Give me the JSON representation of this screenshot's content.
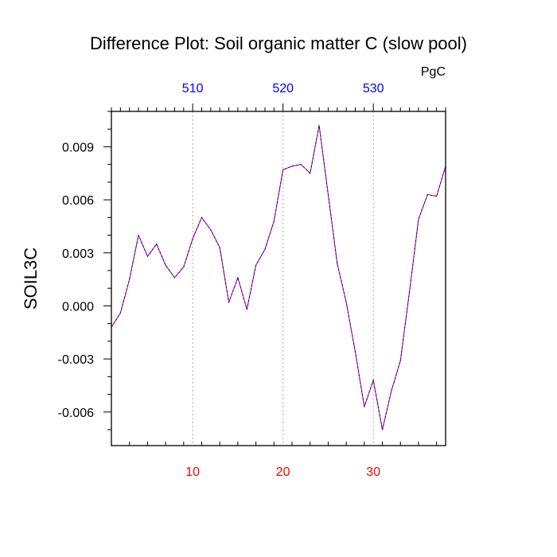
{
  "chart_data": {
    "type": "line",
    "title": "Difference Plot: Soil organic matter C (slow pool)",
    "units": "PgC",
    "ylabel": "SOIL3C",
    "xlabel": "",
    "xlim": [
      1,
      38
    ],
    "ylim": [
      -0.0079,
      0.011
    ],
    "grid": "vertical dashed at bottom x major ticks",
    "x_ticks": [
      10,
      20,
      30
    ],
    "y_ticks": [
      0.009,
      0.006,
      0.003,
      0.0,
      -0.003,
      -0.006
    ],
    "y_tick_labels": [
      "0.009",
      "0.006",
      "0.003",
      "0.000",
      "-0.003",
      "-0.006"
    ],
    "top_ticks": [
      {
        "x": 10,
        "label": "510"
      },
      {
        "x": 20,
        "label": "520"
      },
      {
        "x": 30,
        "label": "530"
      }
    ],
    "colors": {
      "bottom_tick_labels": "#ff0000",
      "top_tick_labels": "#0000ff",
      "series_primary": "#0000ff",
      "series_secondary": "#ff0000",
      "grid": "#aaaaaa",
      "frame": "#000000"
    },
    "series": [
      {
        "values": [
          [
            1,
            -0.0012
          ],
          [
            2,
            -0.0004
          ],
          [
            3,
            0.0015
          ],
          [
            4,
            0.004
          ],
          [
            5,
            0.0028
          ],
          [
            6,
            0.0035
          ],
          [
            7,
            0.0023
          ],
          [
            8,
            0.0016
          ],
          [
            9,
            0.0022
          ],
          [
            10,
            0.0038
          ],
          [
            11,
            0.005
          ],
          [
            12,
            0.0043
          ],
          [
            13,
            0.0033
          ],
          [
            14,
            0.0002
          ],
          [
            15,
            0.0016
          ],
          [
            16,
            -0.0002
          ],
          [
            17,
            0.0023
          ],
          [
            18,
            0.0032
          ],
          [
            19,
            0.0048
          ],
          [
            20,
            0.0077
          ],
          [
            21,
            0.0079
          ],
          [
            22,
            0.008
          ],
          [
            23,
            0.0075
          ],
          [
            24,
            0.0102
          ],
          [
            25,
            0.0063
          ],
          [
            26,
            0.0024
          ],
          [
            27,
            0.0002
          ],
          [
            28,
            -0.0026
          ],
          [
            29,
            -0.0057
          ],
          [
            30,
            -0.0042
          ],
          [
            31,
            -0.007
          ],
          [
            32,
            -0.0048
          ],
          [
            33,
            -0.0031
          ],
          [
            34,
            0.0008
          ],
          [
            35,
            0.0049
          ],
          [
            36,
            0.0063
          ],
          [
            37,
            0.0062
          ],
          [
            38,
            0.0079
          ]
        ]
      }
    ]
  }
}
